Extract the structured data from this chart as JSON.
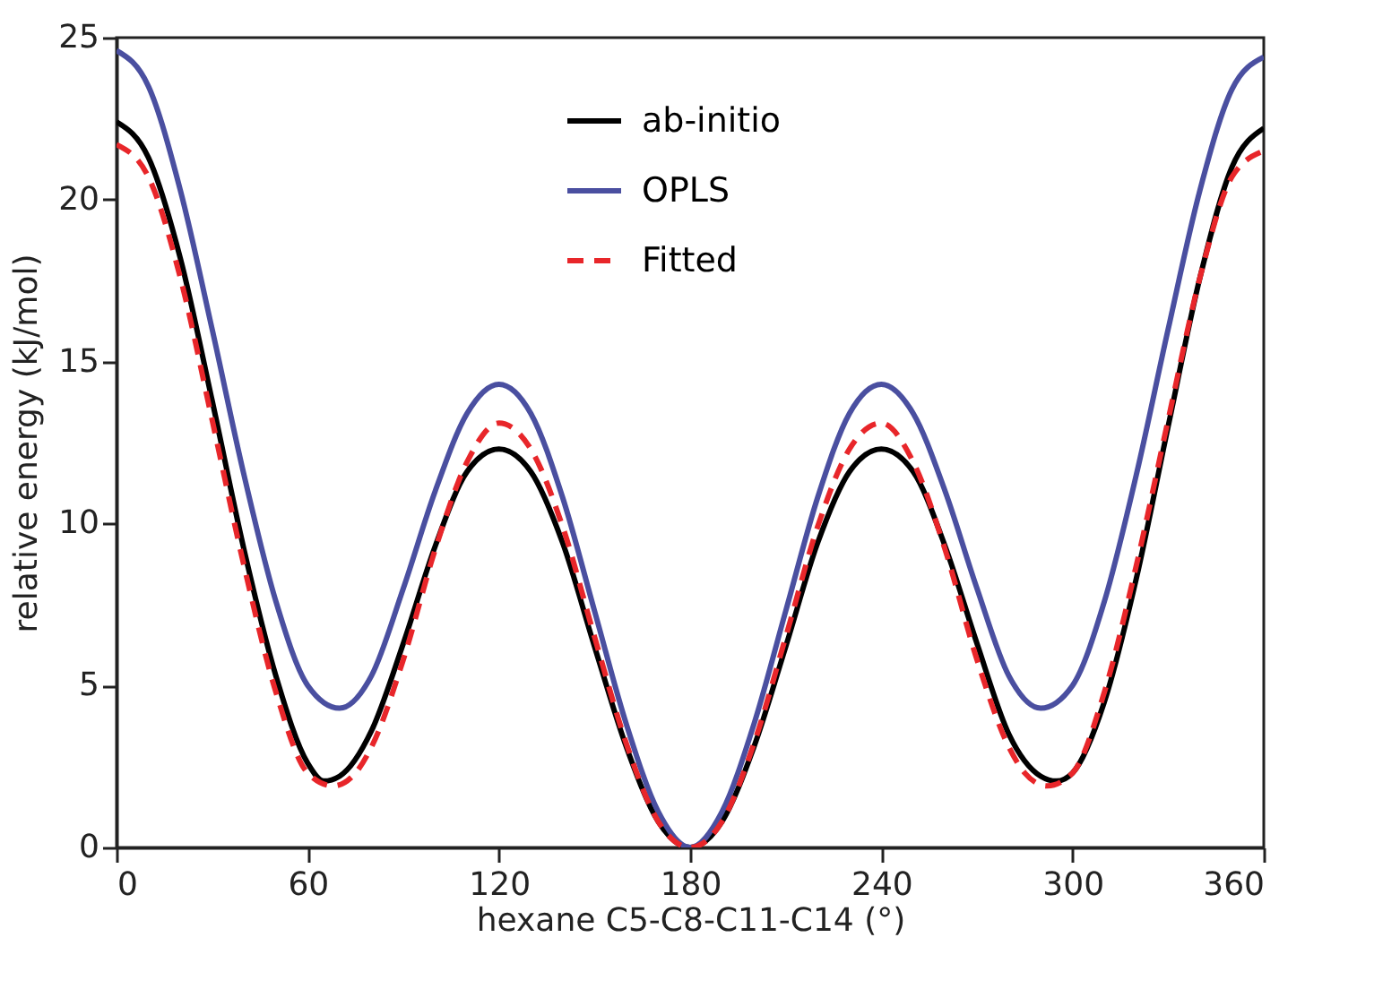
{
  "chart_data": {
    "type": "line",
    "xlabel": "hexane C5-C8-C11-C14 (°)",
    "ylabel": "relative energy (kJ/mol)",
    "xlim": [
      0,
      360
    ],
    "xticks": [
      0,
      60,
      120,
      180,
      240,
      300,
      360
    ],
    "ylim": [
      0,
      25
    ],
    "yticks": [
      0,
      5,
      10,
      15,
      20,
      25
    ],
    "grid": false,
    "legend": "top",
    "marker": "none",
    "series": [
      {
        "name": "ab-initio",
        "color": "#000000",
        "line_style": "solid",
        "x": [
          0,
          10,
          20,
          30,
          40,
          50,
          60,
          65,
          70,
          80,
          90,
          100,
          110,
          120,
          130,
          140,
          150,
          160,
          170,
          180,
          190,
          200,
          210,
          220,
          230,
          240,
          250,
          260,
          270,
          280,
          290,
          295,
          300,
          310,
          320,
          330,
          340,
          350,
          360
        ],
        "values": [
          22.4,
          21.3,
          18.2,
          13.8,
          9.2,
          5.3,
          2.6,
          2.05,
          2.2,
          3.6,
          6.3,
          9.3,
          11.6,
          12.3,
          11.6,
          9.4,
          6.2,
          3.1,
          0.8,
          0,
          0.8,
          3.1,
          6.2,
          9.4,
          11.6,
          12.3,
          11.6,
          9.3,
          6.3,
          3.5,
          2.2,
          2.05,
          2.3,
          4.5,
          8.3,
          13,
          17.6,
          21,
          22.2
        ]
      },
      {
        "name": "OPLS",
        "color": "#4a4fa0",
        "line_style": "solid",
        "x": [
          0,
          10,
          20,
          30,
          40,
          50,
          60,
          70,
          80,
          90,
          100,
          110,
          120,
          130,
          140,
          150,
          160,
          170,
          180,
          190,
          200,
          210,
          220,
          230,
          240,
          250,
          260,
          270,
          280,
          290,
          300,
          310,
          320,
          330,
          340,
          350,
          360
        ],
        "values": [
          24.6,
          23.5,
          20.3,
          16,
          11.5,
          7.6,
          5,
          4.3,
          5.3,
          8,
          11,
          13.4,
          14.3,
          13.4,
          10.8,
          7.3,
          3.8,
          1.1,
          0,
          1.1,
          3.8,
          7.3,
          10.8,
          13.4,
          14.3,
          13.4,
          11,
          8,
          5.3,
          4.3,
          5,
          7.6,
          11.5,
          16,
          20.3,
          23.4,
          24.4
        ]
      },
      {
        "name": "Fitted",
        "color": "#e8262a",
        "line_style": "dashed",
        "x": [
          0,
          10,
          20,
          30,
          40,
          50,
          60,
          68,
          75,
          80,
          90,
          100,
          110,
          120,
          130,
          140,
          150,
          160,
          170,
          180,
          190,
          200,
          210,
          220,
          230,
          240,
          250,
          260,
          270,
          280,
          285,
          292,
          300,
          310,
          320,
          330,
          340,
          350,
          360
        ],
        "values": [
          21.7,
          20.7,
          17.6,
          13.2,
          8.7,
          4.8,
          2.3,
          1.9,
          2.3,
          3.1,
          5.8,
          9.2,
          11.9,
          13.1,
          12.3,
          9.9,
          6.5,
          3.2,
          0.8,
          0,
          0.8,
          3.2,
          6.5,
          9.9,
          12.3,
          13.1,
          11.9,
          9.2,
          5.8,
          3.1,
          2.3,
          1.9,
          2.3,
          4.8,
          8.7,
          13.2,
          17.6,
          20.7,
          21.5
        ]
      }
    ]
  }
}
